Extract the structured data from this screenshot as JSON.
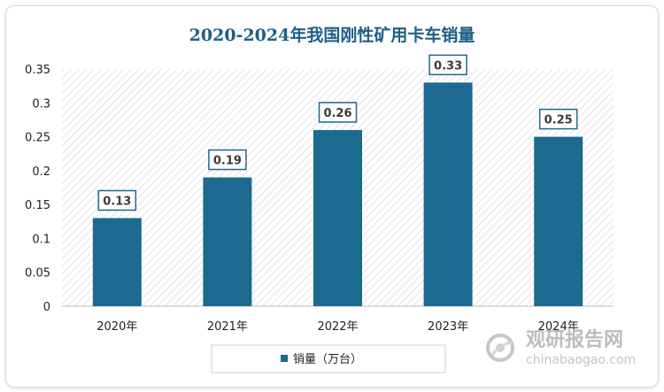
{
  "chart_data": {
    "type": "bar",
    "title": "2020-2024年我国刚性矿用卡车销量",
    "categories": [
      "2020年",
      "2021年",
      "2022年",
      "2023年",
      "2024年"
    ],
    "series": [
      {
        "name": "销量（万台）",
        "values": [
          0.13,
          0.19,
          0.26,
          0.33,
          0.25
        ]
      }
    ],
    "data_labels": [
      "0.13",
      "0.19",
      "0.26",
      "0.33",
      "0.25"
    ],
    "yticks": [
      "0",
      "0.05",
      "0.1",
      "0.15",
      "0.2",
      "0.25",
      "0.3",
      "0.35"
    ],
    "ylim": [
      0,
      0.35
    ],
    "xlabel": "",
    "ylabel": "",
    "grid": false,
    "legend_position": "bottom",
    "colors": {
      "bar": "#1c6a8f",
      "title": "#1f5e86",
      "label_border": "#1c6a8f"
    }
  },
  "watermark": {
    "brand": "观研报告网",
    "url": "chinabaogao.com"
  }
}
